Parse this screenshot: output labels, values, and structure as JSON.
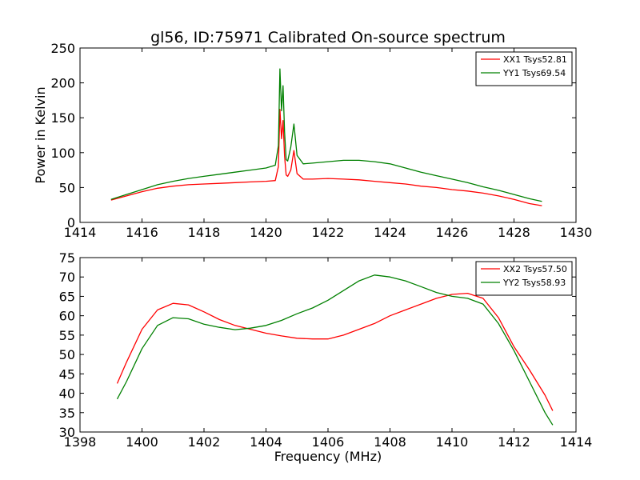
{
  "chart_data": [
    {
      "type": "line",
      "title": "gl56, ID:75971 Calibrated On-source spectrum",
      "xlabel": "",
      "ylabel": "Power in Kelvin",
      "xlim": [
        1414,
        1430
      ],
      "ylim": [
        0,
        250
      ],
      "xticks": [
        "1414",
        "1416",
        "1418",
        "1420",
        "1422",
        "1424",
        "1426",
        "1428",
        "1430"
      ],
      "yticks": [
        "0",
        "50",
        "100",
        "150",
        "200",
        "250"
      ],
      "legend_position": "top-right",
      "grid": false,
      "series": [
        {
          "name": "XX1 Tsys52.81",
          "color": "#ff0000",
          "x": [
            1415.0,
            1415.5,
            1416.0,
            1416.5,
            1417.0,
            1417.5,
            1418.0,
            1418.5,
            1419.0,
            1419.5,
            1420.0,
            1420.3,
            1420.4,
            1420.45,
            1420.5,
            1420.55,
            1420.6,
            1420.65,
            1420.7,
            1420.8,
            1420.9,
            1421.0,
            1421.2,
            1421.5,
            1422.0,
            1422.5,
            1423.0,
            1423.5,
            1424.0,
            1424.5,
            1425.0,
            1425.5,
            1426.0,
            1426.5,
            1427.0,
            1427.5,
            1428.0,
            1428.5,
            1428.9
          ],
          "values": [
            32,
            38,
            44,
            49,
            52,
            54,
            55,
            56,
            57,
            58,
            59,
            60,
            80,
            162,
            120,
            146,
            95,
            68,
            66,
            75,
            103,
            70,
            62,
            62,
            63,
            62,
            61,
            59,
            57,
            55,
            52,
            50,
            47,
            45,
            42,
            38,
            33,
            27,
            24
          ]
        },
        {
          "name": "YY1 Tsys69.54",
          "color": "#008000",
          "x": [
            1415.0,
            1415.5,
            1416.0,
            1416.5,
            1417.0,
            1417.5,
            1418.0,
            1418.5,
            1419.0,
            1419.5,
            1420.0,
            1420.3,
            1420.4,
            1420.45,
            1420.5,
            1420.55,
            1420.6,
            1420.65,
            1420.7,
            1420.8,
            1420.9,
            1421.0,
            1421.2,
            1421.5,
            1422.0,
            1422.5,
            1423.0,
            1423.5,
            1424.0,
            1424.5,
            1425.0,
            1425.5,
            1426.0,
            1426.5,
            1427.0,
            1427.5,
            1428.0,
            1428.5,
            1428.9
          ],
          "values": [
            33,
            40,
            47,
            54,
            59,
            63,
            66,
            69,
            72,
            75,
            78,
            82,
            110,
            220,
            160,
            196,
            130,
            90,
            88,
            108,
            141,
            96,
            84,
            85,
            87,
            89,
            89,
            87,
            84,
            78,
            72,
            67,
            62,
            57,
            51,
            46,
            40,
            34,
            30
          ]
        }
      ]
    },
    {
      "type": "line",
      "title": "",
      "xlabel": "Frequency (MHz)",
      "ylabel": "",
      "xlim": [
        1398,
        1414
      ],
      "ylim": [
        30,
        75
      ],
      "xticks": [
        "1398",
        "1400",
        "1402",
        "1404",
        "1406",
        "1408",
        "1410",
        "1412",
        "1414"
      ],
      "yticks": [
        "30",
        "35",
        "40",
        "45",
        "50",
        "55",
        "60",
        "65",
        "70",
        "75"
      ],
      "legend_position": "top-right",
      "grid": false,
      "series": [
        {
          "name": "XX2 Tsys57.50",
          "color": "#ff0000",
          "x": [
            1399.2,
            1399.5,
            1400.0,
            1400.5,
            1401.0,
            1401.5,
            1402.0,
            1402.5,
            1403.0,
            1403.5,
            1404.0,
            1404.5,
            1405.0,
            1405.5,
            1406.0,
            1406.5,
            1407.0,
            1407.5,
            1408.0,
            1408.5,
            1409.0,
            1409.5,
            1410.0,
            1410.5,
            1411.0,
            1411.5,
            1412.0,
            1412.5,
            1413.0,
            1413.25
          ],
          "values": [
            42.5,
            48.0,
            56.5,
            61.5,
            63.2,
            62.8,
            61.0,
            59.0,
            57.5,
            56.5,
            55.5,
            54.8,
            54.2,
            54.0,
            54.0,
            55.0,
            56.5,
            58.0,
            60.0,
            61.5,
            63.0,
            64.5,
            65.5,
            65.8,
            64.5,
            59.5,
            52.0,
            46.0,
            39.5,
            35.5
          ]
        },
        {
          "name": "YY2 Tsys58.93",
          "color": "#008000",
          "x": [
            1399.2,
            1399.5,
            1400.0,
            1400.5,
            1401.0,
            1401.5,
            1402.0,
            1402.5,
            1403.0,
            1403.5,
            1404.0,
            1404.5,
            1405.0,
            1405.5,
            1406.0,
            1406.5,
            1407.0,
            1407.5,
            1408.0,
            1408.5,
            1409.0,
            1409.5,
            1410.0,
            1410.5,
            1411.0,
            1411.5,
            1412.0,
            1412.5,
            1413.0,
            1413.25
          ],
          "values": [
            38.5,
            43.0,
            51.5,
            57.5,
            59.5,
            59.2,
            57.8,
            57.0,
            56.4,
            56.8,
            57.5,
            58.8,
            60.5,
            62.0,
            64.0,
            66.5,
            69.0,
            70.5,
            70.0,
            69.0,
            67.5,
            66.0,
            65.0,
            64.5,
            63.0,
            58.0,
            51.0,
            43.0,
            35.0,
            31.8
          ]
        }
      ]
    }
  ]
}
